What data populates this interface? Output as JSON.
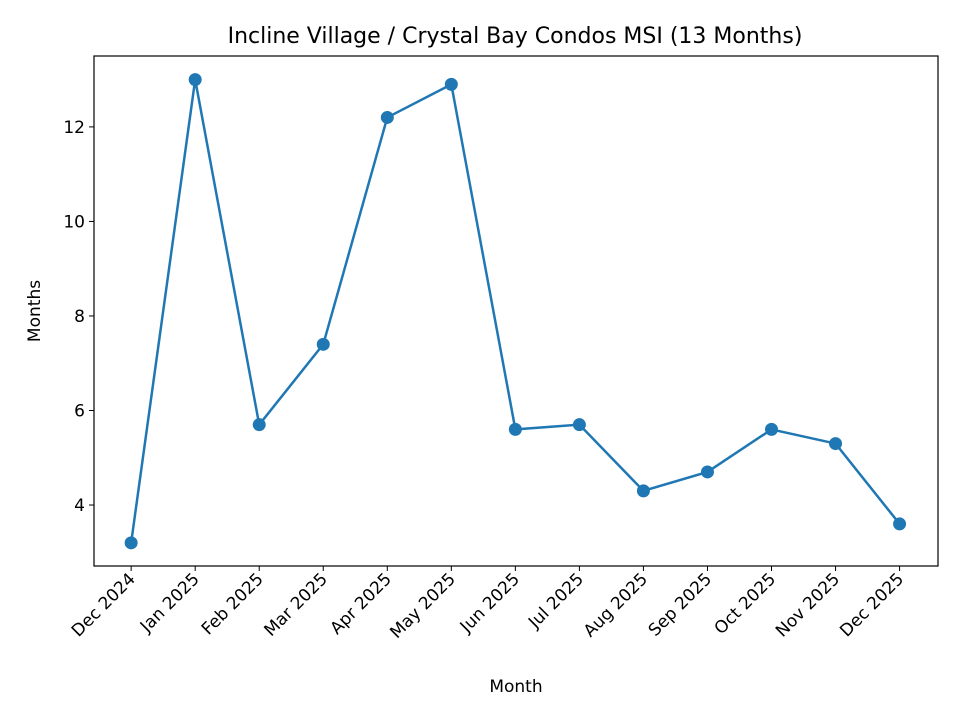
{
  "chart_data": {
    "type": "line",
    "title": "Incline Village / Crystal Bay Condos MSI (13 Months)",
    "xlabel": "Month",
    "ylabel": "Months",
    "categories": [
      "Dec 2024",
      "Jan 2025",
      "Feb 2025",
      "Mar 2025",
      "Apr 2025",
      "May 2025",
      "Jun 2025",
      "Jul 2025",
      "Aug 2025",
      "Sep 2025",
      "Oct 2025",
      "Nov 2025",
      "Dec 2025"
    ],
    "series": [
      {
        "name": "MSI",
        "values": [
          3.2,
          13.0,
          5.7,
          7.4,
          12.2,
          12.9,
          5.6,
          5.7,
          4.3,
          4.7,
          5.6,
          5.3,
          3.6
        ],
        "color": "#1f77b4",
        "marker": "circle"
      }
    ],
    "ylim": [
      2.71,
      13.5
    ],
    "xlim": [
      -0.58,
      12.6
    ],
    "yticks": [
      4,
      6,
      8,
      10,
      12
    ],
    "grid": false,
    "legend": "none"
  }
}
